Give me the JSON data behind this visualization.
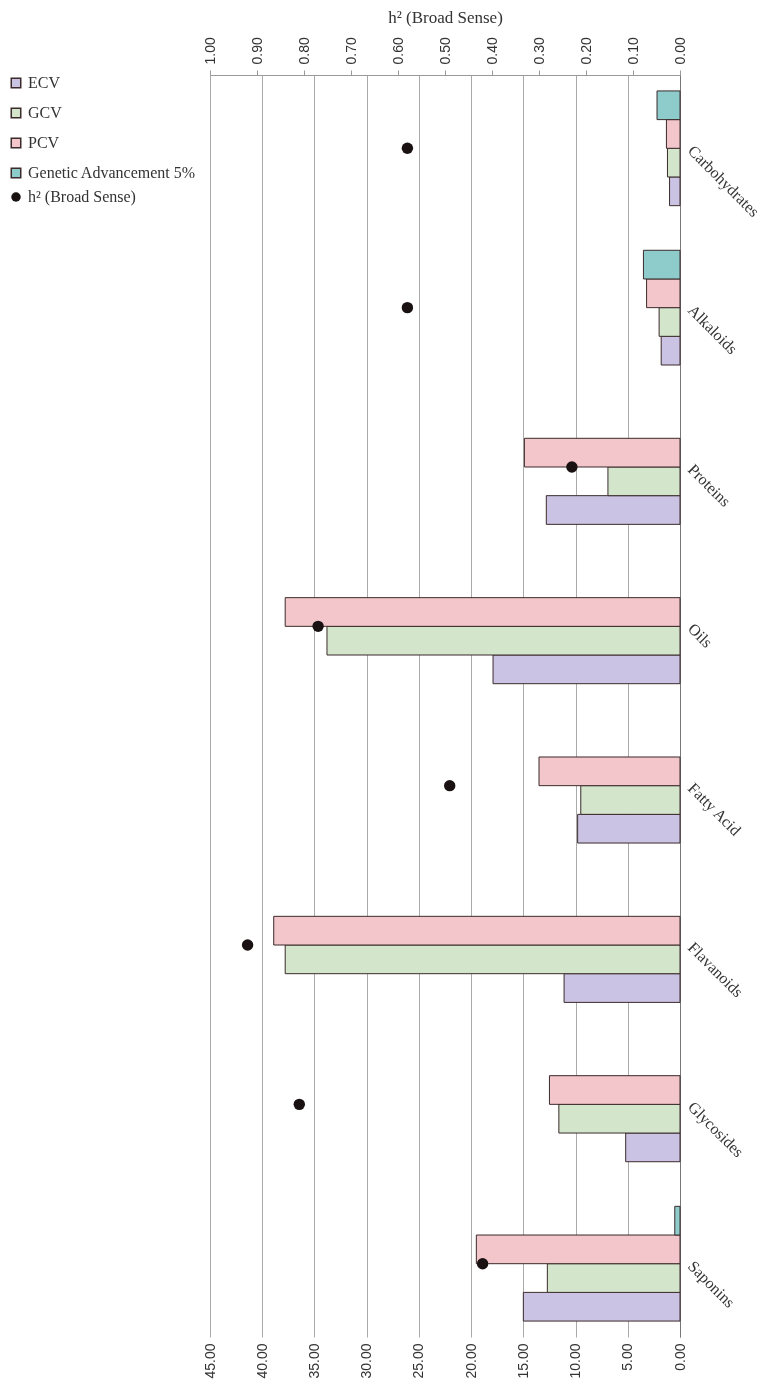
{
  "chart_data": {
    "type": "bar",
    "orientation": "horizontal",
    "categories": [
      "Carbohydrates",
      "Alkaloids",
      "Proteins",
      "Oils",
      "Fatty Acid",
      "Flavanoids",
      "Glycosides",
      "Saponins"
    ],
    "series": [
      {
        "name": "ECV",
        "color": "#cbc3e3",
        "values": [
          1.0,
          1.8,
          12.8,
          17.9,
          9.8,
          11.1,
          5.2,
          15.0
        ]
      },
      {
        "name": "GCV",
        "color": "#d3e6cc",
        "values": [
          1.2,
          2.0,
          6.9,
          33.8,
          9.5,
          37.8,
          11.6,
          12.7
        ]
      },
      {
        "name": "PCV",
        "color": "#f2c6ca",
        "values": [
          1.3,
          3.2,
          14.9,
          37.8,
          13.5,
          38.9,
          12.5,
          19.5
        ]
      },
      {
        "name": "Genetic Advancement 5%",
        "color": "#8ecccc",
        "values": [
          2.2,
          3.5,
          null,
          null,
          null,
          null,
          null,
          0.5
        ]
      },
      {
        "name": "h² (Broad Sense)",
        "type": "scatter",
        "axis": "x2",
        "color": "#1a1212",
        "values": [
          0.58,
          0.58,
          0.23,
          0.77,
          0.49,
          0.92,
          0.81,
          0.42
        ]
      }
    ],
    "xlim": [
      45,
      0
    ],
    "xticks": [
      {
        "value": 45,
        "label": "45.00"
      },
      {
        "value": 40,
        "label": "40.00"
      },
      {
        "value": 35,
        "label": "35.00"
      },
      {
        "value": 30,
        "label": "30.00"
      },
      {
        "value": 25,
        "label": "25.00"
      },
      {
        "value": 20,
        "label": "20.00"
      },
      {
        "value": 15,
        "label": "15.00"
      },
      {
        "value": 10,
        "label": "10.00"
      },
      {
        "value": 5,
        "label": "5.00"
      },
      {
        "value": 0,
        "label": "0.00"
      }
    ],
    "x2lim": [
      1,
      0
    ],
    "x2ticks": [
      {
        "value": 1,
        "label": "1.00"
      },
      {
        "value": 0.9,
        "label": "0.90"
      },
      {
        "value": 0.8,
        "label": "0.80"
      },
      {
        "value": 0.7,
        "label": "0.70"
      },
      {
        "value": 0.6,
        "label": "0.60"
      },
      {
        "value": 0.5,
        "label": "0.50"
      },
      {
        "value": 0.4,
        "label": "0.40"
      },
      {
        "value": 0.3,
        "label": "0.30"
      },
      {
        "value": 0.2,
        "label": "0.20"
      },
      {
        "value": 0.1,
        "label": "0.10"
      },
      {
        "value": 0,
        "label": "0.00"
      }
    ],
    "x2label": "h² (Broad Sense)",
    "grid": "x",
    "legend": "left",
    "marker": "circle"
  }
}
